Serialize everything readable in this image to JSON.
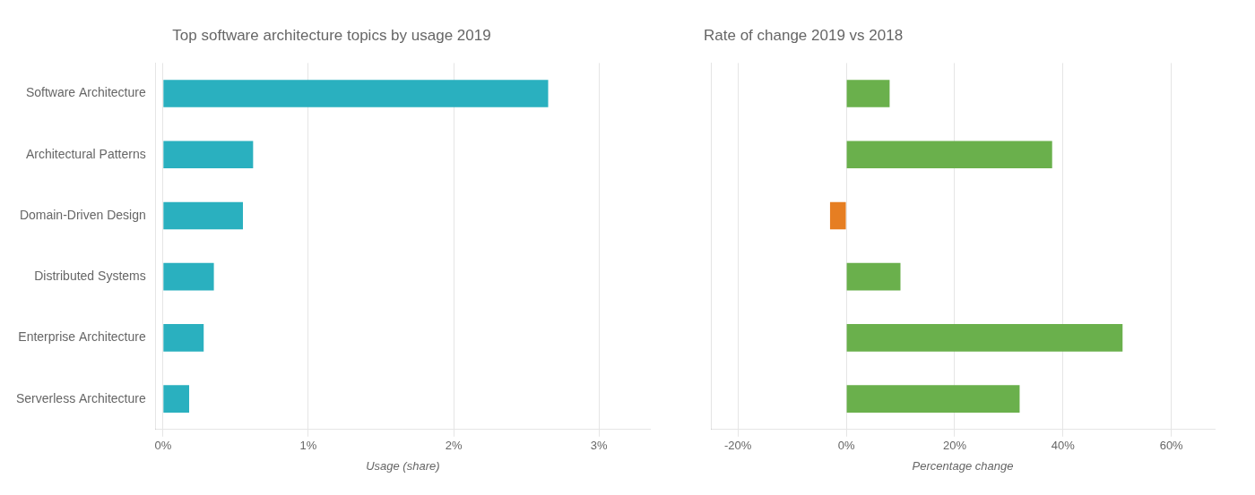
{
  "chart_data": [
    {
      "type": "bar",
      "orientation": "horizontal",
      "title": "Top software architecture topics by usage 2019",
      "x_label": "Usage (share)",
      "categories": [
        "Software Architecture",
        "Architectural Patterns",
        "Domain-Driven Design",
        "Distributed Systems",
        "Enterprise Architecture",
        "Serverless Architecture"
      ],
      "values": [
        2.65,
        0.62,
        0.55,
        0.35,
        0.28,
        0.18
      ],
      "color": "#2ab0bf",
      "xlim": [
        -0.05,
        3.35
      ],
      "xticks": [
        {
          "value": 0,
          "label": "0%"
        },
        {
          "value": 1,
          "label": "1%"
        },
        {
          "value": 2,
          "label": "2%"
        },
        {
          "value": 3,
          "label": "3%"
        }
      ],
      "grid": true
    },
    {
      "type": "bar",
      "orientation": "horizontal",
      "title": "Rate of change 2019 vs 2018",
      "x_label": "Percentage change",
      "categories": [
        "Software Architecture",
        "Architectural Patterns",
        "Domain-Driven Design",
        "Distributed Systems",
        "Enterprise Architecture",
        "Serverless Architecture"
      ],
      "values": [
        8,
        38,
        -3,
        10,
        51,
        32
      ],
      "colors": [
        "#6ab04c",
        "#6ab04c",
        "#e67e22",
        "#6ab04c",
        "#6ab04c",
        "#6ab04c"
      ],
      "xlim": [
        -25,
        68
      ],
      "xticks": [
        {
          "value": -20,
          "label": "-20%"
        },
        {
          "value": 0,
          "label": "0%"
        },
        {
          "value": 20,
          "label": "20%"
        },
        {
          "value": 40,
          "label": "40%"
        },
        {
          "value": 60,
          "label": "60%"
        }
      ],
      "grid": true,
      "tick_labels": "x"
    }
  ]
}
